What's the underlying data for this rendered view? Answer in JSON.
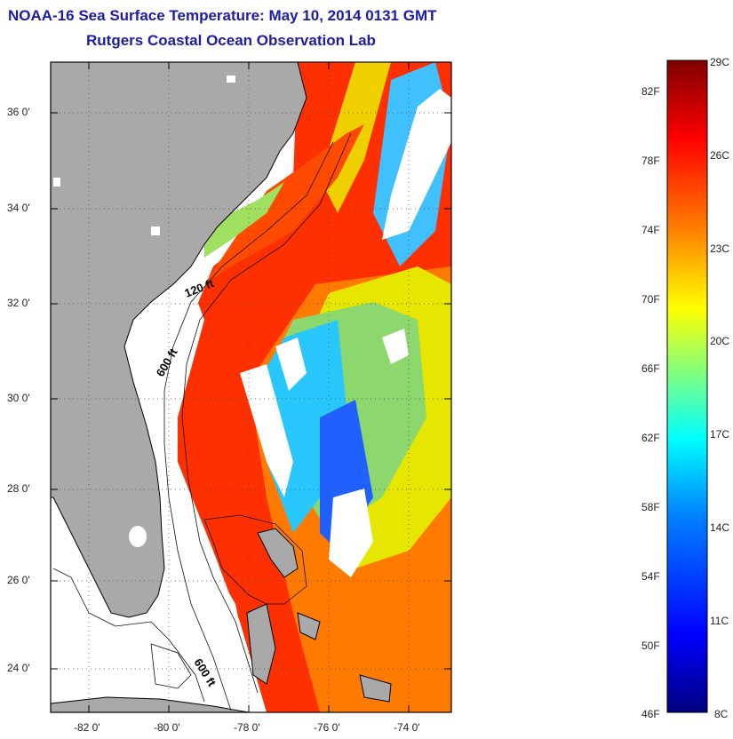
{
  "header": {
    "title": "NOAA-16 Sea Surface Temperature:  May 10, 2014 0131 GMT",
    "subtitle": "Rutgers Coastal Ocean Observation Lab"
  },
  "map": {
    "lat_labels": [
      "36 0'",
      "34 0'",
      "32 0'",
      "30 0'",
      "28 0'",
      "26 0'",
      "24 0'"
    ],
    "lon_labels": [
      "-82 0'",
      "-80 0'",
      "-78 0'",
      "-76 0'",
      "-74 0'"
    ],
    "isobath_labels": [
      "120 ft",
      "600 ft",
      "600 ft"
    ],
    "colors": {
      "land": "#a9a9a9",
      "cloud": "#ffffff",
      "frame": "#000000"
    }
  },
  "colorbar": {
    "fahrenheit_labels": [
      "82F",
      "78F",
      "74F",
      "70F",
      "66F",
      "62F",
      "58F",
      "54F",
      "50F",
      "46F"
    ],
    "celsius_labels": [
      "29C",
      "26C",
      "23C",
      "20C",
      "17C",
      "14C",
      "11C",
      "8C"
    ],
    "palette": [
      "#00007f",
      "#0000ff",
      "#0080ff",
      "#00ffff",
      "#80ff80",
      "#ffff00",
      "#ff8000",
      "#ff0000",
      "#7f0000"
    ]
  }
}
